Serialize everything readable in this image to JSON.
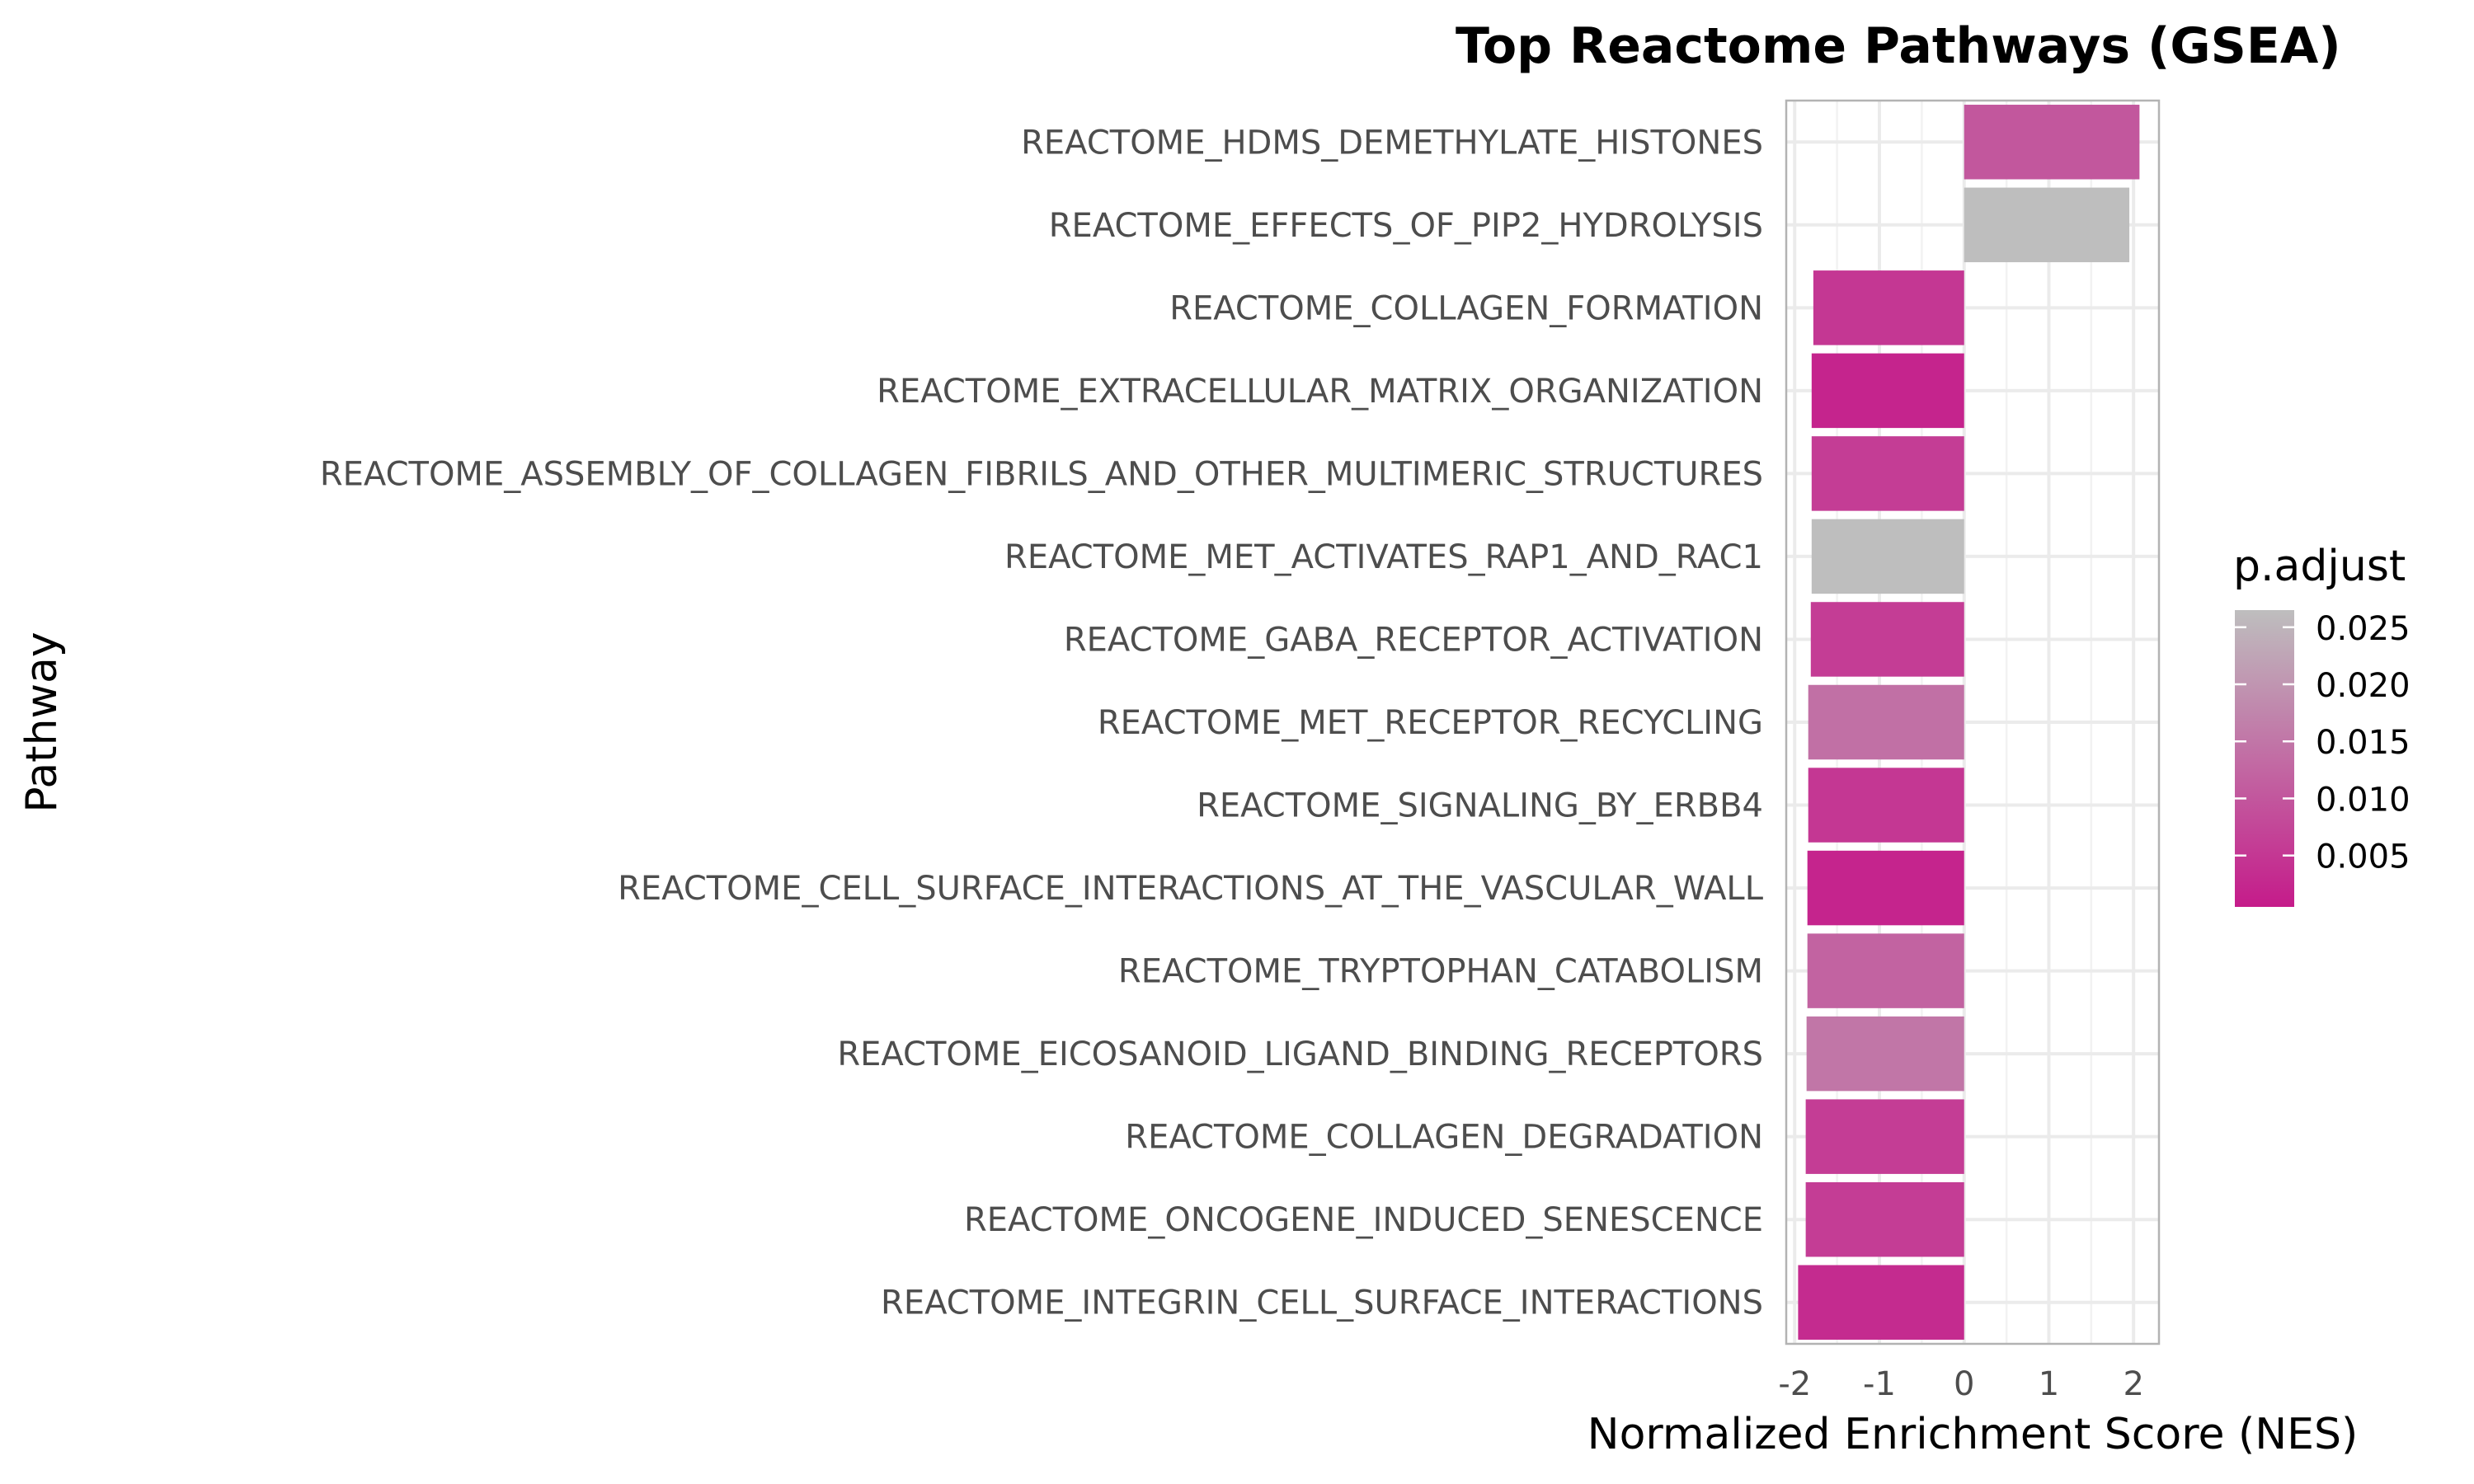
{
  "chart_data": {
    "type": "bar",
    "orientation": "horizontal",
    "title": "Top Reactome Pathways (GSEA)",
    "xlabel": "Normalized Enrichment Score (NES)",
    "ylabel": "Pathway",
    "xlim": [
      -2.1,
      2.3
    ],
    "x_ticks": [
      -2,
      -1,
      0,
      1,
      2
    ],
    "x_tick_labels": [
      "-2",
      "-1",
      "0",
      "1",
      "2"
    ],
    "grid": true,
    "categories": [
      "REACTOME_HDMS_DEMETHYLATE_HISTONES",
      "REACTOME_EFFECTS_OF_PIP2_HYDROLYSIS",
      "REACTOME_COLLAGEN_FORMATION",
      "REACTOME_EXTRACELLULAR_MATRIX_ORGANIZATION",
      "REACTOME_ASSEMBLY_OF_COLLAGEN_FIBRILS_AND_OTHER_MULTIMERIC_STRUCTURES",
      "REACTOME_MET_ACTIVATES_RAP1_AND_RAC1",
      "REACTOME_GABA_RECEPTOR_ACTIVATION",
      "REACTOME_MET_RECEPTOR_RECYCLING",
      "REACTOME_SIGNALING_BY_ERBB4",
      "REACTOME_CELL_SURFACE_INTERACTIONS_AT_THE_VASCULAR_WALL",
      "REACTOME_TRYPTOPHAN_CATABOLISM",
      "REACTOME_EICOSANOID_LIGAND_BINDING_RECEPTORS",
      "REACTOME_COLLAGEN_DEGRADATION",
      "REACTOME_ONCOGENE_INDUCED_SENESCENCE",
      "REACTOME_INTEGRIN_CELL_SURFACE_INTERACTIONS"
    ],
    "values": [
      2.07,
      1.95,
      -1.78,
      -1.8,
      -1.8,
      -1.8,
      -1.81,
      -1.84,
      -1.84,
      -1.85,
      -1.85,
      -1.86,
      -1.87,
      -1.87,
      -1.96
    ],
    "p_adjust": [
      0.01,
      0.027,
      0.005,
      0.002,
      0.006,
      0.027,
      0.006,
      0.014,
      0.005,
      0.002,
      0.012,
      0.015,
      0.006,
      0.006,
      0.003
    ],
    "legend": {
      "title": "p.adjust",
      "placement": "right",
      "ticks": [
        0.025,
        0.02,
        0.015,
        0.01,
        0.005
      ],
      "tick_labels": [
        "0.025",
        "0.020",
        "0.015",
        "0.010",
        "0.005"
      ],
      "range": [
        0.0005,
        0.0265
      ],
      "color_low": "#c51b8a",
      "color_high": "#bebebe"
    }
  }
}
